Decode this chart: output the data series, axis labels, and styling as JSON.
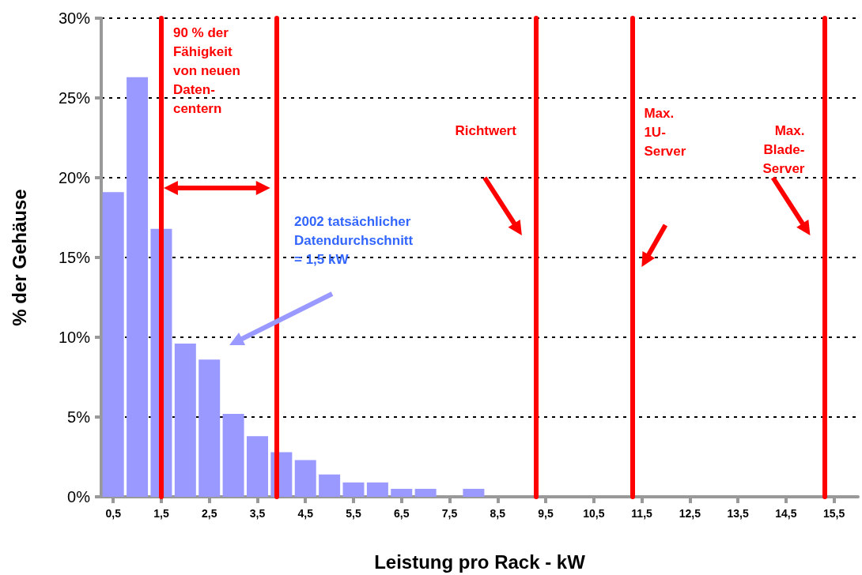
{
  "chart_data": {
    "type": "bar",
    "xlabel": "Leistung pro Rack - kW",
    "ylabel": "% der Gehäuse",
    "x": [
      0.5,
      1.0,
      1.5,
      2.0,
      2.5,
      3.0,
      3.5,
      4.0,
      4.5,
      5.0,
      5.5,
      6.0,
      6.5,
      7.0,
      7.5,
      8.0
    ],
    "values": [
      19.1,
      26.3,
      16.8,
      9.6,
      8.6,
      5.2,
      3.8,
      2.8,
      2.3,
      1.4,
      0.9,
      0.9,
      0.5,
      0.5,
      0,
      0.5
    ],
    "color": "#9999ff",
    "xlim": [
      0.25,
      16
    ],
    "xticks": [
      {
        "value": 0.5,
        "label": "0,5"
      },
      {
        "value": 1.5,
        "label": "1,5"
      },
      {
        "value": 2.5,
        "label": "2,5"
      },
      {
        "value": 3.5,
        "label": "3,5"
      },
      {
        "value": 4.5,
        "label": "4,5"
      },
      {
        "value": 5.5,
        "label": "5,5"
      },
      {
        "value": 6.5,
        "label": "6,5"
      },
      {
        "value": 7.5,
        "label": "7,5"
      },
      {
        "value": 8.5,
        "label": "8,5"
      },
      {
        "value": 9.5,
        "label": "9,5"
      },
      {
        "value": 10.5,
        "label": "10,5"
      },
      {
        "value": 11.5,
        "label": "11,5"
      },
      {
        "value": 12.5,
        "label": "12,5"
      },
      {
        "value": 13.5,
        "label": "13,5"
      },
      {
        "value": 14.5,
        "label": "14,5"
      },
      {
        "value": 15.5,
        "label": "15,5"
      }
    ],
    "ylim": [
      0,
      30
    ],
    "yticks": [
      {
        "value": 0,
        "label": "0%"
      },
      {
        "value": 5,
        "label": "5%"
      },
      {
        "value": 10,
        "label": "10%"
      },
      {
        "value": 15,
        "label": "15%"
      },
      {
        "value": 20,
        "label": "20%"
      },
      {
        "value": 25,
        "label": "25%"
      },
      {
        "value": 30,
        "label": "30%"
      }
    ],
    "grid": "y",
    "ref_lines": [
      {
        "axis": "x",
        "value": 1.5,
        "color": "#ff0000"
      },
      {
        "axis": "x",
        "value": 3.9,
        "color": "#ff0000"
      },
      {
        "axis": "x",
        "value": 9.3,
        "label": "Richtwert",
        "color": "#ff0000"
      },
      {
        "axis": "x",
        "value": 11.3,
        "label": "Max.\n1U-\nServer",
        "color": "#ff0000"
      },
      {
        "axis": "x",
        "value": 15.3,
        "label": "Max.\nBlade-\nServer",
        "color": "#ff0000"
      }
    ],
    "annotations": [
      "90 % der\nFähigkeit\nvon neuen\nDaten-\ncentern",
      "2002 tatsächlicher\nDatendurchschnitt\n= 1,5 kW"
    ]
  }
}
